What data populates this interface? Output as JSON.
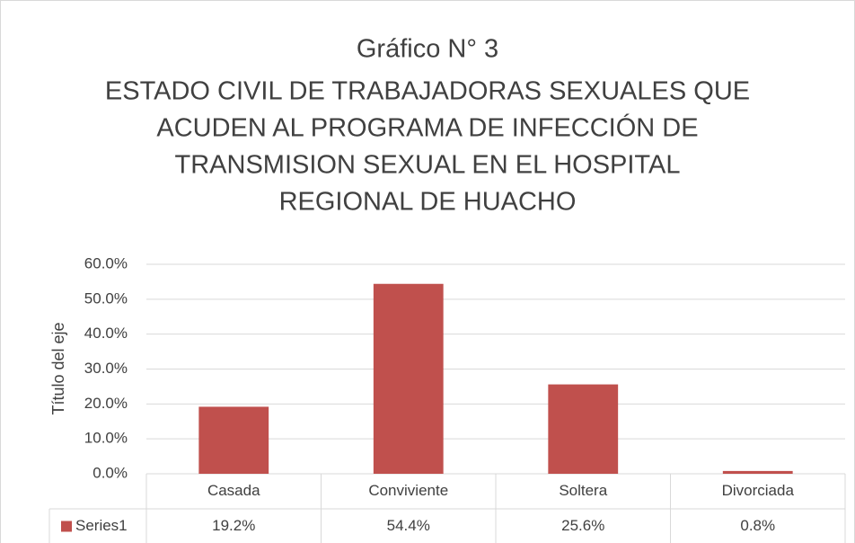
{
  "chart_data": {
    "type": "bar",
    "title": "Gráfico N° 3",
    "subtitle": [
      "ESTADO CIVIL DE TRABAJADORAS SEXUALES QUE",
      "ACUDEN AL PROGRAMA DE INFECCIÓN DE",
      "TRANSMISION SEXUAL EN EL HOSPITAL",
      "REGIONAL DE HUACHO"
    ],
    "y_label": "Título del eje",
    "categories": [
      "Casada",
      "Conviviente",
      "Soltera",
      "Divorciada"
    ],
    "series": [
      {
        "name": "Series1",
        "color": "#c0504d",
        "values": [
          19.2,
          54.4,
          25.6,
          0.8
        ],
        "value_labels": [
          "19.2%",
          "54.4%",
          "25.6%",
          "0.8%"
        ]
      }
    ],
    "ylim": [
      0,
      60
    ],
    "yticks": [
      {
        "value": 0,
        "label": "0.0%"
      },
      {
        "value": 10,
        "label": "10.0%"
      },
      {
        "value": 20,
        "label": "20.0%"
      },
      {
        "value": 30,
        "label": "30.0%"
      },
      {
        "value": 40,
        "label": "40.0%"
      },
      {
        "value": 50,
        "label": "50.0%"
      },
      {
        "value": 60,
        "label": "60.0%"
      }
    ],
    "grid": true
  }
}
